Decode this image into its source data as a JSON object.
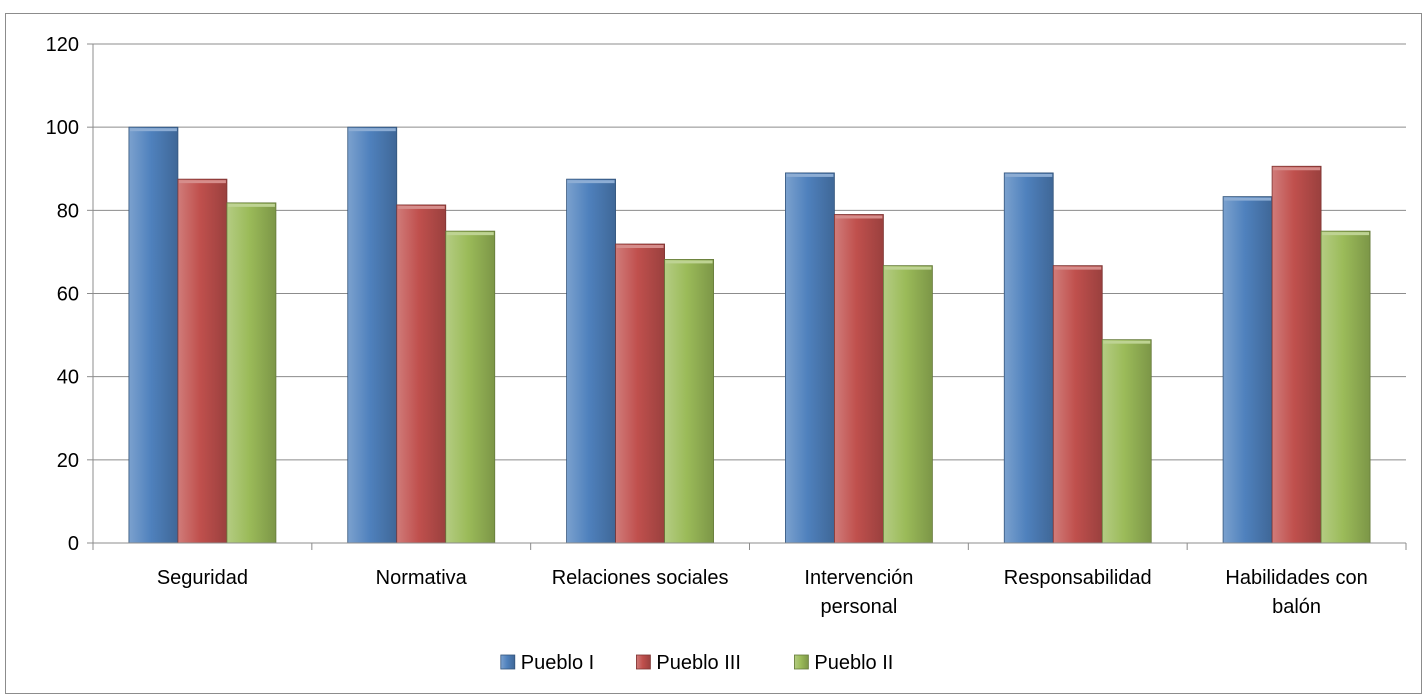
{
  "chart_data": {
    "type": "bar",
    "categories": [
      [
        "Seguridad"
      ],
      [
        "Normativa"
      ],
      [
        "Relaciones sociales"
      ],
      [
        "Intervención",
        "personal"
      ],
      [
        "Responsabilidad"
      ],
      [
        "Habilidades con",
        "balón"
      ]
    ],
    "series": [
      {
        "name": "Pueblo I",
        "color": "#4f81bd",
        "values": [
          100,
          100,
          87.5,
          89,
          89,
          83.3
        ]
      },
      {
        "name": "Pueblo III",
        "color": "#c0504d",
        "values": [
          87.5,
          81.3,
          71.9,
          79,
          66.7,
          90.6
        ]
      },
      {
        "name": "Pueblo II",
        "color": "#9bbb59",
        "values": [
          81.8,
          75,
          68.2,
          66.7,
          48.9,
          75
        ]
      }
    ],
    "ylim": [
      0,
      120
    ],
    "yticks": [
      0,
      20,
      40,
      60,
      80,
      100,
      120
    ],
    "grid": true,
    "legend_position": "bottom"
  }
}
